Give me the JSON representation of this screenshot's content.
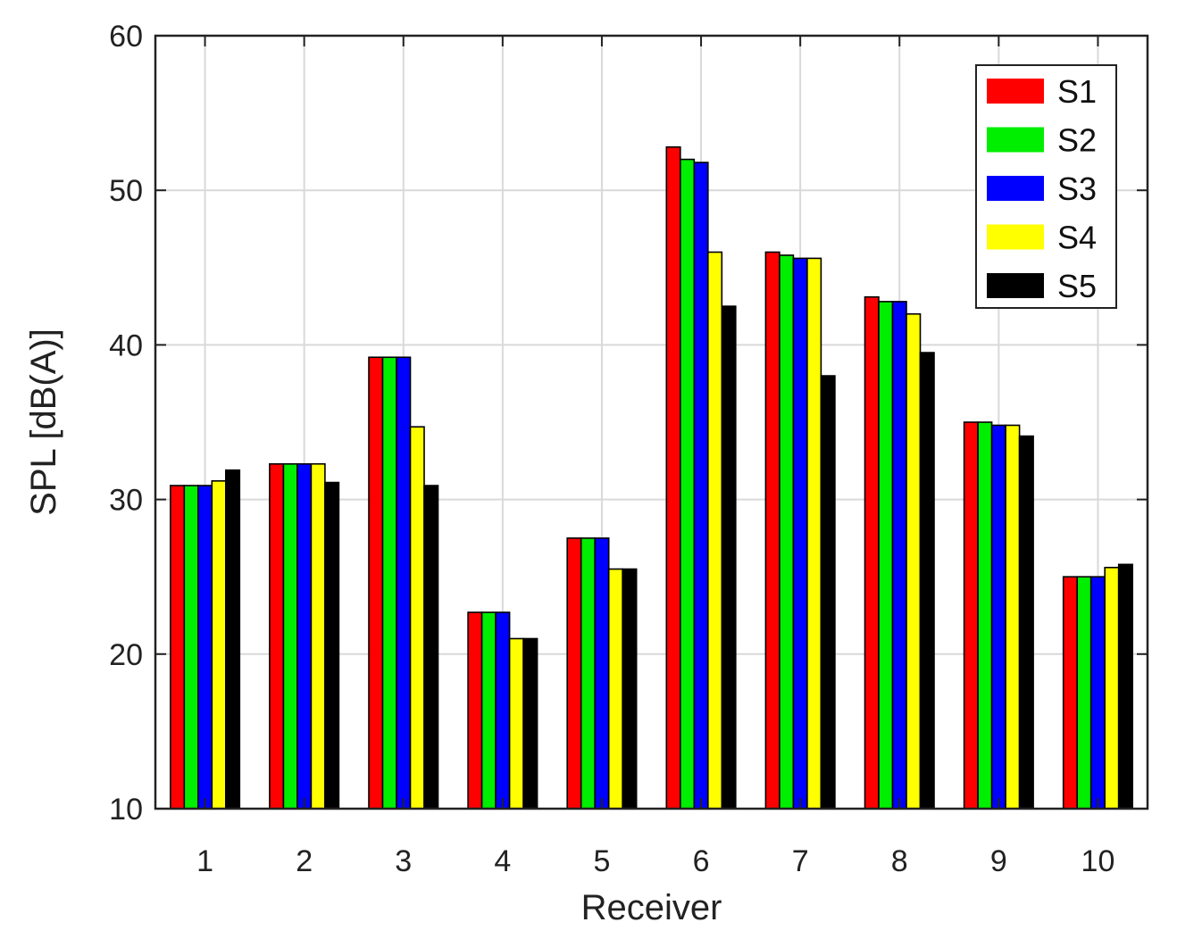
{
  "chart_data": {
    "type": "bar",
    "title": "",
    "xlabel": "Receiver",
    "ylabel": "SPL [dB(A)]",
    "ylim": [
      10,
      60
    ],
    "yticks": [
      10,
      20,
      30,
      40,
      50,
      60
    ],
    "grid": true,
    "legend_position": "top-right",
    "categories": [
      "1",
      "2",
      "3",
      "4",
      "5",
      "6",
      "7",
      "8",
      "9",
      "10"
    ],
    "series": [
      {
        "name": "S1",
        "color": "#ff0000",
        "values": [
          30.9,
          32.3,
          39.2,
          22.7,
          27.5,
          52.8,
          46.0,
          43.1,
          35.0,
          25.0
        ]
      },
      {
        "name": "S2",
        "color": "#00ee00",
        "values": [
          30.9,
          32.3,
          39.2,
          22.7,
          27.5,
          52.0,
          45.8,
          42.8,
          35.0,
          25.0
        ]
      },
      {
        "name": "S3",
        "color": "#0000ff",
        "values": [
          30.9,
          32.3,
          39.2,
          22.7,
          27.5,
          51.8,
          45.6,
          42.8,
          34.8,
          25.0
        ]
      },
      {
        "name": "S4",
        "color": "#ffff00",
        "values": [
          31.2,
          32.3,
          34.7,
          21.0,
          25.5,
          46.0,
          45.6,
          42.0,
          34.8,
          25.6
        ]
      },
      {
        "name": "S5",
        "color": "#000000",
        "values": [
          31.9,
          31.1,
          30.9,
          21.0,
          25.5,
          42.5,
          38.0,
          39.5,
          34.1,
          25.8
        ]
      }
    ]
  }
}
